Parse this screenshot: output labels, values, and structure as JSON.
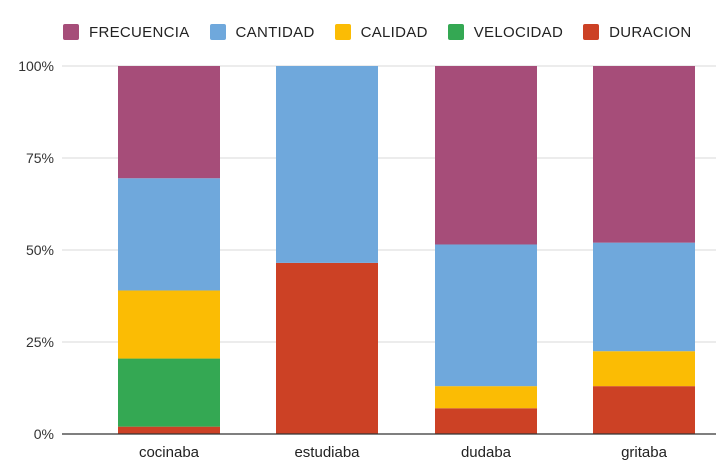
{
  "chart_data": {
    "type": "bar",
    "stacked": true,
    "normalized": true,
    "categories": [
      "cocinaba",
      "estudiaba",
      "dudaba",
      "gritaba"
    ],
    "series": [
      {
        "name": "DURACION",
        "color": "#cc4125",
        "values": [
          2,
          46.5,
          7,
          13
        ]
      },
      {
        "name": "VELOCIDAD",
        "color": "#34a853",
        "values": [
          18.5,
          0,
          0,
          0
        ]
      },
      {
        "name": "CALIDAD",
        "color": "#fbbc04",
        "values": [
          18.5,
          0,
          6,
          9.5
        ]
      },
      {
        "name": "CANTIDAD",
        "color": "#6fa8dc",
        "values": [
          30.5,
          53.5,
          38.5,
          29.5
        ]
      },
      {
        "name": "FRECUENCIA",
        "color": "#a64d79",
        "values": [
          30.5,
          0,
          48.5,
          48
        ]
      }
    ],
    "legend_order": [
      "FRECUENCIA",
      "CANTIDAD",
      "CALIDAD",
      "VELOCIDAD",
      "DURACION"
    ],
    "yticks": [
      "0%",
      "25%",
      "50%",
      "75%",
      "100%"
    ],
    "ylim": [
      0,
      100
    ],
    "grid": true,
    "legend_position": "top-left"
  }
}
